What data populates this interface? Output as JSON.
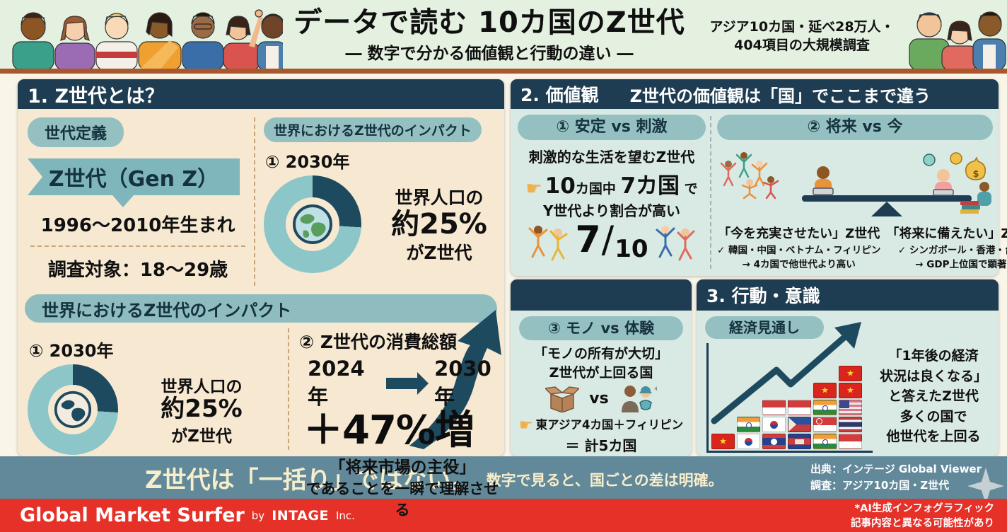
{
  "header": {
    "title": "データで読む 10カ国のZ世代",
    "subtitle": "― 数字で分かる価値観と行動の違い ―",
    "note1": "アジア10カ国・延べ28万人・",
    "note2": "404項目の大規模調査"
  },
  "s1": {
    "title": "1. Z世代とは？",
    "definition": {
      "label": "世代定義",
      "banner": "Z世代（Gen Z）",
      "birth": "1996〜2010年生まれ",
      "target": "調査対象：18〜29歳"
    },
    "impact_top": {
      "label": "世界におけるZ世代のインパクト",
      "item": "① 2030年",
      "line1": "世界人口の",
      "value": "約25%",
      "line2": "がZ世代"
    },
    "impact_bottom": {
      "label": "世界におけるZ世代のインパクト",
      "item1": {
        "title": "① 2030年",
        "line1": "世界人口の",
        "value": "約25%",
        "line2": "がZ世代"
      },
      "item2": {
        "title": "② Z世代の消費総額",
        "year_from": "2024年",
        "year_to": "2030年",
        "value": "＋47%増",
        "quote": "「将来市場の主役」",
        "desc": "であることを一瞬で理解させる"
      }
    }
  },
  "s2": {
    "title": "2. 価値観",
    "subtitle": "Z世代の価値観は「国」でここまで違う",
    "col1": {
      "label": "① 安定 vs 刺激",
      "line1": "刺激的な生活を望むZ世代",
      "finger": "☛",
      "seg_big1": "10",
      "seg_small1": "カ国中 ",
      "seg_big2": "7カ国",
      "seg_small2": " で",
      "line3": "Y世代より割合が高い",
      "fraction_num": "7",
      "fraction_slash": "/",
      "fraction_den": "10"
    },
    "col2": {
      "label": "② 将来 vs 今",
      "left": {
        "title": "「今を充実させたい」Z世代",
        "check": "✓ 韓国・中国・ベトナム・フィリピン",
        "arrow": "→ 4カ国で他世代より高い"
      },
      "right": {
        "title": "「将来に備えたい」Z世代",
        "check": "✓ シンガポール・香港・台湾",
        "arrow": "→ GDP上位国で顕著"
      }
    }
  },
  "s3a": {
    "label": "③ モノ vs 体験",
    "line1": "「モノの所有が大切」",
    "line2": "Z世代が上回る国",
    "vs": "vs",
    "finger": "☛",
    "point_text": "東アジア4カ国＋フィリピン",
    "result": "＝ 計5カ国"
  },
  "s3b": {
    "title": "3. 行動・意識",
    "label": "経済見通し",
    "lines": [
      "「1年後の経済",
      "状況は良くなる」",
      "と答えたZ世代",
      "多くの国で",
      "他世代を上回る"
    ],
    "chart": {
      "columns": [
        [
          "vietnam"
        ],
        [
          "korea",
          "india"
        ],
        [
          "laos",
          "korea",
          "indonesia"
        ],
        [
          "cambodia",
          "philippines",
          "indonesia"
        ],
        [
          "india",
          "singapore",
          "india",
          "vietnam"
        ],
        [
          "indonesia",
          "thailand",
          "malaysia",
          "vietnam",
          "vietnam"
        ]
      ]
    }
  },
  "slogan": {
    "main": "Z世代は「一括り」ではない。",
    "sub": "数字で見ると、国ごとの差は明確。",
    "source1": "出典：インテージ Global Viewer",
    "source2": "調査：アジア10カ国・Z世代"
  },
  "footer": {
    "brand": "Global Market Surfer",
    "by": "by",
    "company": "INTAGE",
    "suffix": "Inc.",
    "note1": "*AI生成インフォグラフィック",
    "note2": "記事内容と異なる可能性があり"
  },
  "colors": {
    "navy": "#1e3d52",
    "teal_pill": "#95c0c1",
    "donut_ring": "#8cc6c8",
    "donut_slice": "#1e4a5f",
    "beige_panel": "#f7e8d1",
    "mint_panel": "#d9e9e3",
    "header_bg": "#e4f1e1",
    "slogan_band": "#62899a",
    "slogan_text": "#f7eecb",
    "footer_red": "#e63129",
    "brown_rule": "#a9582e"
  },
  "chart_data": [
    {
      "type": "pie",
      "title": "世界におけるZ世代のインパクト ① 2030年",
      "labels": [
        "Z世代",
        "その他"
      ],
      "values": [
        25,
        75
      ],
      "annotation": "世界人口の約25%がZ世代"
    },
    {
      "type": "bar",
      "title": "Z世代の消費総額 2024年→2030年",
      "categories": [
        "増加率"
      ],
      "values": [
        47
      ],
      "annotation": "＋47%増「将来市場の主役」であることを一瞬で理解させる"
    },
    {
      "type": "bar",
      "title": "経済見通し（国旗の積み上げ）",
      "categories": [
        "col1",
        "col2",
        "col3",
        "col4",
        "col5",
        "col6"
      ],
      "values": [
        1,
        2,
        3,
        3,
        4,
        5
      ],
      "annotation": "「1年後の経済状況は良くなる」と答えたZ世代 多くの国で他世代を上回る"
    }
  ]
}
